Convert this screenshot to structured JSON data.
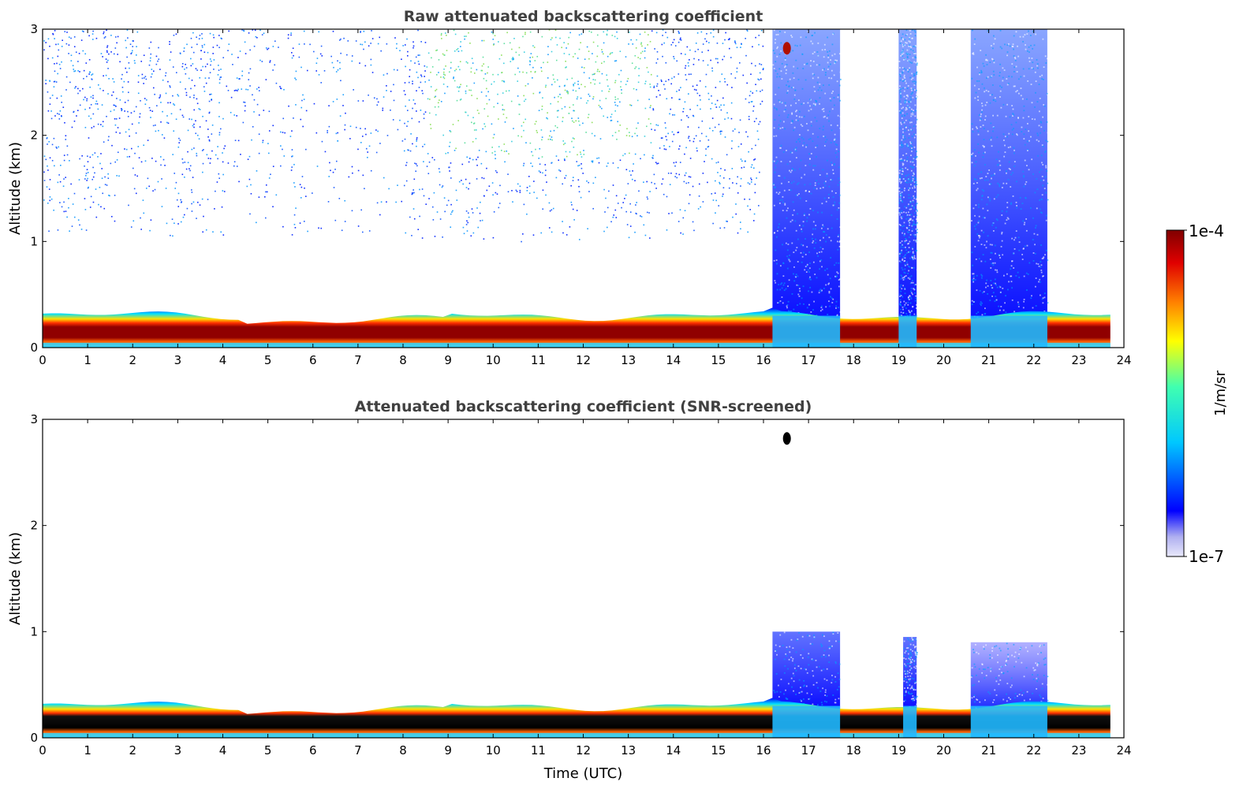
{
  "chart_data": [
    {
      "type": "heatmap",
      "title": "Raw attenuated backscattering coefficient",
      "xlabel": "",
      "ylabel": "Altitude (km)",
      "xlim": [
        0,
        24
      ],
      "ylim": [
        0,
        3
      ],
      "x_ticks": [
        "0",
        "1",
        "2",
        "3",
        "4",
        "5",
        "6",
        "7",
        "8",
        "9",
        "10",
        "11",
        "12",
        "13",
        "14",
        "15",
        "16",
        "17",
        "18",
        "19",
        "20",
        "21",
        "22",
        "23",
        "24"
      ],
      "y_ticks": [
        "0",
        "1",
        "2",
        "3"
      ],
      "features": [
        {
          "name": "boundary layer",
          "x_range": [
            0,
            23.7
          ],
          "altitude_km": [
            0.05,
            0.3
          ],
          "level": "high"
        },
        {
          "name": "cloud base",
          "x_range": [
            16.2,
            17.7
          ],
          "altitude_km": [
            0,
            3
          ],
          "level": "medium"
        },
        {
          "name": "cloud base",
          "x_range": [
            19.0,
            19.4
          ],
          "altitude_km": [
            0,
            3
          ],
          "level": "medium"
        },
        {
          "name": "cloud base",
          "x_range": [
            20.6,
            22.3
          ],
          "altitude_km": [
            0,
            3
          ],
          "level": "medium"
        },
        {
          "name": "background noise",
          "x_range": [
            0,
            16
          ],
          "altitude_km": [
            1,
            3
          ],
          "level": "low"
        }
      ]
    },
    {
      "type": "heatmap",
      "title": "Attenuated backscattering coefficient (SNR-screened)",
      "xlabel": "Time (UTC)",
      "ylabel": "Altitude (km)",
      "xlim": [
        0,
        24
      ],
      "ylim": [
        0,
        3
      ],
      "x_ticks": [
        "0",
        "1",
        "2",
        "3",
        "4",
        "5",
        "6",
        "7",
        "8",
        "9",
        "10",
        "11",
        "12",
        "13",
        "14",
        "15",
        "16",
        "17",
        "18",
        "19",
        "20",
        "21",
        "22",
        "23",
        "24"
      ],
      "y_ticks": [
        "0",
        "1",
        "2",
        "3"
      ],
      "features": [
        {
          "name": "boundary layer",
          "x_range": [
            0,
            23.7
          ],
          "altitude_km": [
            0.05,
            0.3
          ],
          "level": "high"
        },
        {
          "name": "cloud",
          "x_range": [
            16.2,
            17.7
          ],
          "altitude_km": [
            0,
            1.0
          ],
          "level": "medium"
        },
        {
          "name": "cloud",
          "x_range": [
            19.1,
            19.4
          ],
          "altitude_km": [
            0,
            0.95
          ],
          "level": "medium"
        },
        {
          "name": "cloud",
          "x_range": [
            20.6,
            22.3
          ],
          "altitude_km": [
            0,
            0.9
          ],
          "level": "medium"
        }
      ]
    }
  ],
  "colorbar": {
    "label": "1/m/sr",
    "max_label": "1e-4",
    "min_label": "1e-7",
    "scale": "log",
    "colormap": [
      "#e8e8fa",
      "#0000ff",
      "#00c8ff",
      "#40ffb0",
      "#ffff00",
      "#ff8000",
      "#e00000",
      "#800000"
    ]
  }
}
